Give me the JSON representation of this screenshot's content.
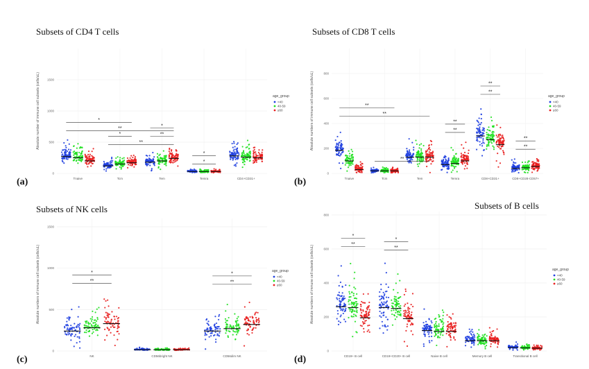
{
  "colors": {
    "lt40": "#1f3fe0",
    "40to59": "#1ee01e",
    "ge60": "#e81e1e"
  },
  "chart_data": [
    {
      "type": "scatter",
      "label": "(a)",
      "title": "Subsets of CD4 T cells",
      "ylabel": "Absolute number of immune cell subsets (cells/uL)",
      "ylim": [
        0,
        2000
      ],
      "yticks": [
        0,
        500,
        1000,
        1500
      ],
      "legend_title": "age_group",
      "legend_items": [
        "<40",
        "40-59",
        "≥60"
      ],
      "categories": [
        "Tnaive",
        "Tcm",
        "Tem",
        "Temra",
        "CD4+CD31+"
      ],
      "series": [
        {
          "name": "<40",
          "medians": [
            270,
            120,
            180,
            30,
            280
          ],
          "spreads": [
            230,
            120,
            150,
            30,
            220
          ]
        },
        {
          "name": "40-59",
          "medians": [
            250,
            150,
            200,
            30,
            260
          ],
          "spreads": [
            220,
            140,
            170,
            35,
            210
          ]
        },
        {
          "name": "≥60",
          "medians": [
            200,
            170,
            240,
            30,
            250
          ],
          "spreads": [
            200,
            150,
            190,
            35,
            200
          ]
        }
      ],
      "significance": [
        {
          "from": 0,
          "to": 2,
          "label": "**"
        },
        {
          "from": 0,
          "to": 1,
          "label": "*"
        },
        {
          "from": 1,
          "to": 2,
          "label": "**"
        },
        {
          "from": 1,
          "to": 1,
          "label": "*"
        },
        {
          "from": 2,
          "to": 2,
          "label": "**"
        },
        {
          "from": 2,
          "to": 2,
          "label": "*"
        },
        {
          "from": 3,
          "to": 3,
          "label": "*"
        },
        {
          "from": 3,
          "to": 3,
          "label": "*"
        }
      ]
    },
    {
      "type": "scatter",
      "label": "(b)",
      "title": "Subsets of CD8 T cells",
      "ylabel": "Absolute numbers of immune cell subsets (cells/uL)",
      "ylim": [
        0,
        1000
      ],
      "yticks": [
        0,
        200,
        400,
        600,
        800
      ],
      "legend_title": "age_group",
      "legend_items": [
        "<40",
        "40-59",
        "≥60"
      ],
      "categories": [
        "Tnaive",
        "Tcm",
        "Tem",
        "Temra",
        "CD8+CD31+",
        "CD8+CD28-CD57+"
      ],
      "series": [
        {
          "name": "<40",
          "medians": [
            185,
            20,
            130,
            70,
            300,
            40
          ],
          "spreads": [
            160,
            30,
            110,
            90,
            200,
            60
          ]
        },
        {
          "name": "40-59",
          "medians": [
            100,
            20,
            130,
            80,
            270,
            45
          ],
          "spreads": [
            120,
            30,
            120,
            110,
            190,
            65
          ]
        },
        {
          "name": "≥60",
          "medians": [
            30,
            20,
            130,
            100,
            230,
            55
          ],
          "spreads": [
            60,
            30,
            120,
            130,
            180,
            70
          ]
        }
      ],
      "significance": [
        {
          "from": 0,
          "to": 2,
          "label": "**"
        },
        {
          "from": 0,
          "to": 1,
          "label": "**"
        },
        {
          "from": 1,
          "to": 2,
          "label": "**"
        },
        {
          "from": 3,
          "to": 3,
          "label": "**"
        },
        {
          "from": 3,
          "to": 3,
          "label": "**"
        },
        {
          "from": 4,
          "to": 4,
          "label": "**"
        },
        {
          "from": 4,
          "to": 4,
          "label": "**"
        },
        {
          "from": 5,
          "to": 5,
          "label": "**"
        },
        {
          "from": 5,
          "to": 5,
          "label": "**"
        }
      ]
    },
    {
      "type": "scatter",
      "label": "(c)",
      "title": "Subsets of NK cells",
      "ylabel": "Absolute numbers of immune cell subsets (cells/uL)",
      "ylim": [
        0,
        1600
      ],
      "yticks": [
        0,
        500,
        1000,
        1500
      ],
      "legend_title": "age_group",
      "legend_items": [
        "<40",
        "40-59",
        "≥60"
      ],
      "categories": [
        "NK",
        "CD56bright NK",
        "CD56dim NK"
      ],
      "series": [
        {
          "name": "<40",
          "medians": [
            240,
            15,
            240
          ],
          "spreads": [
            230,
            25,
            230
          ]
        },
        {
          "name": "40-59",
          "medians": [
            280,
            15,
            270
          ],
          "spreads": [
            260,
            25,
            260
          ]
        },
        {
          "name": "≥60",
          "medians": [
            330,
            15,
            320
          ],
          "spreads": [
            290,
            25,
            290
          ]
        }
      ],
      "significance": [
        {
          "from": 0,
          "to": 0,
          "label": "**"
        },
        {
          "from": 0,
          "to": 0,
          "label": "*"
        },
        {
          "from": 2,
          "to": 2,
          "label": "**"
        },
        {
          "from": 2,
          "to": 2,
          "label": "*"
        }
      ]
    },
    {
      "type": "scatter",
      "label": "(d)",
      "title": "Subsets of B cells",
      "ylabel": "Absolute numbers of immune cell subsets (cells/uL)",
      "ylim": [
        0,
        820
      ],
      "yticks": [
        0,
        200,
        400,
        600,
        800
      ],
      "legend_title": "age_group",
      "legend_items": [
        "<40",
        "40-59",
        "≥60"
      ],
      "categories": [
        "CD19+ B cell",
        "CD19+CD20+ B cell",
        "Naive B cell",
        "Memory B cell",
        "Transitional B cell"
      ],
      "series": [
        {
          "name": "<40",
          "medians": [
            260,
            255,
            120,
            60,
            20
          ],
          "spreads": [
            220,
            210,
            110,
            60,
            25
          ]
        },
        {
          "name": "40-59",
          "medians": [
            255,
            250,
            115,
            60,
            18
          ],
          "spreads": [
            210,
            205,
            110,
            60,
            22
          ]
        },
        {
          "name": "≥60",
          "medians": [
            195,
            190,
            115,
            60,
            16
          ],
          "spreads": [
            190,
            185,
            110,
            60,
            20
          ]
        }
      ],
      "significance": [
        {
          "from": 0,
          "to": 0,
          "label": "**"
        },
        {
          "from": 0,
          "to": 0,
          "label": "*"
        },
        {
          "from": 1,
          "to": 1,
          "label": "**"
        },
        {
          "from": 1,
          "to": 1,
          "label": "*"
        }
      ]
    }
  ]
}
